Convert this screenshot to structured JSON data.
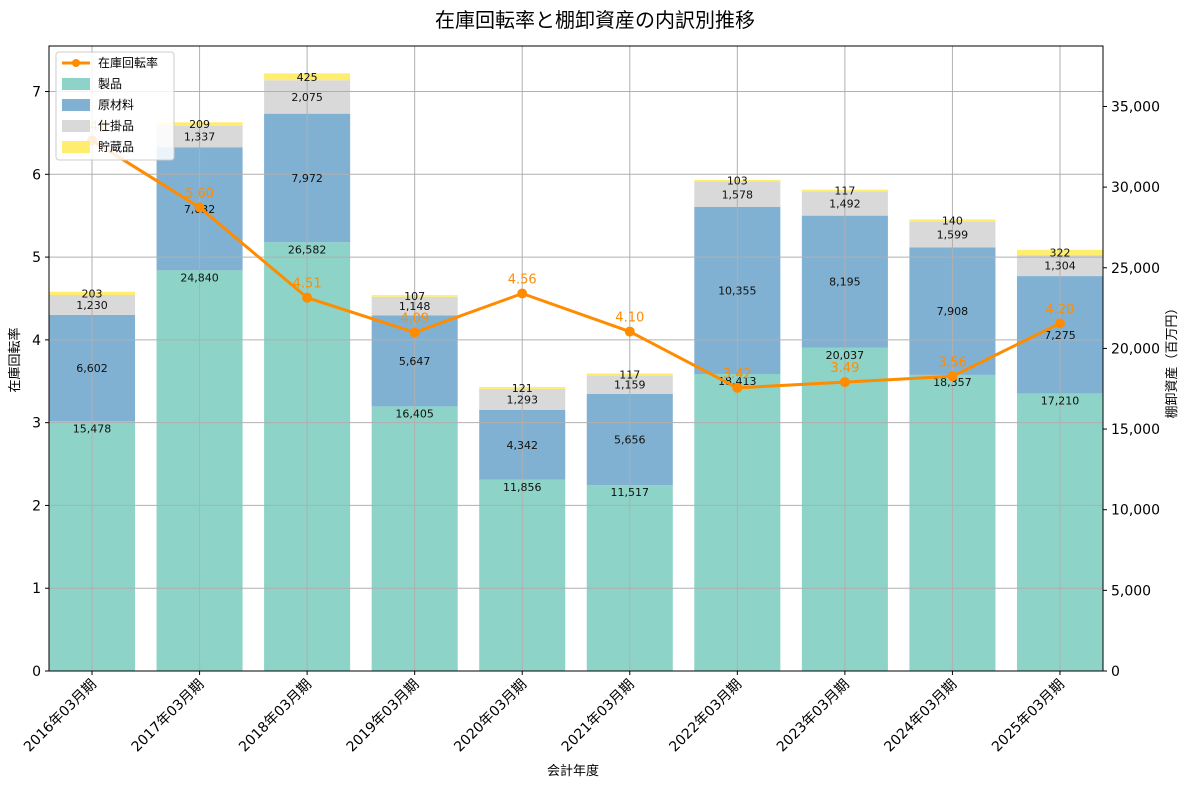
{
  "chart_data": {
    "type": "bar",
    "title": "在庫回転率と棚卸資産の内訳別推移",
    "xlabel": "会計年度",
    "ylabel_left": "在庫回転率",
    "ylabel_right": "棚卸資産（百万円）",
    "categories": [
      "2016年03月期",
      "2017年03月期",
      "2018年03月期",
      "2019年03月期",
      "2020年03月期",
      "2021年03月期",
      "2022年03月期",
      "2023年03月期",
      "2024年03月期",
      "2025年03月期"
    ],
    "series": [
      {
        "name": "製品",
        "color": "#8dd3c7",
        "axis": "right",
        "values": [
          15478,
          24840,
          26582,
          16405,
          11856,
          11517,
          18413,
          20037,
          18357,
          17210
        ],
        "labels": [
          "15,478",
          "24,840",
          "26,582",
          "16,405",
          "11,856",
          "11,517",
          "18,413",
          "20,037",
          "18,357",
          "17,210"
        ]
      },
      {
        "name": "原材料",
        "color": "#80b1d3",
        "axis": "right",
        "values": [
          6602,
          7632,
          7972,
          5647,
          4342,
          5656,
          10355,
          8195,
          7908,
          7275
        ],
        "labels": [
          "6,602",
          "7,632",
          "7,972",
          "5,647",
          "4,342",
          "5,656",
          "10,355",
          "8,195",
          "7,908",
          "7,275"
        ]
      },
      {
        "name": "仕掛品",
        "color": "#d9d9d9",
        "axis": "right",
        "values": [
          1230,
          1337,
          2075,
          1148,
          1293,
          1159,
          1578,
          1492,
          1599,
          1304
        ],
        "labels": [
          "1,230",
          "1,337",
          "2,075",
          "1,148",
          "1,293",
          "1,159",
          "1,578",
          "1,492",
          "1,599",
          "1,304"
        ]
      },
      {
        "name": "貯蔵品",
        "color": "#ffed6f",
        "axis": "right",
        "values": [
          203,
          209,
          425,
          107,
          121,
          117,
          103,
          117,
          140,
          322
        ],
        "labels": [
          "203",
          "209",
          "425",
          "107",
          "121",
          "117",
          "103",
          "117",
          "140",
          "322"
        ]
      }
    ],
    "line": {
      "name": "在庫回転率",
      "color": "#ff8c00",
      "axis": "left",
      "values": [
        6.41,
        5.6,
        4.51,
        4.09,
        4.56,
        4.1,
        3.42,
        3.49,
        3.56,
        4.2
      ],
      "labels": [
        "6.41",
        "5.60",
        "4.51",
        "4.09",
        "4.56",
        "4.10",
        "3.42",
        "3.49",
        "3.56",
        "4.20"
      ]
    },
    "ylim_left": [
      0,
      7.55
    ],
    "ylim_right": [
      0,
      38750
    ],
    "yticks_left": [
      "0",
      "1",
      "2",
      "3",
      "4",
      "5",
      "6",
      "7"
    ],
    "yticks_right": [
      "0",
      "5,000",
      "10,000",
      "15,000",
      "20,000",
      "25,000",
      "30,000",
      "35,000"
    ],
    "legend": "top-left",
    "grid": true
  }
}
